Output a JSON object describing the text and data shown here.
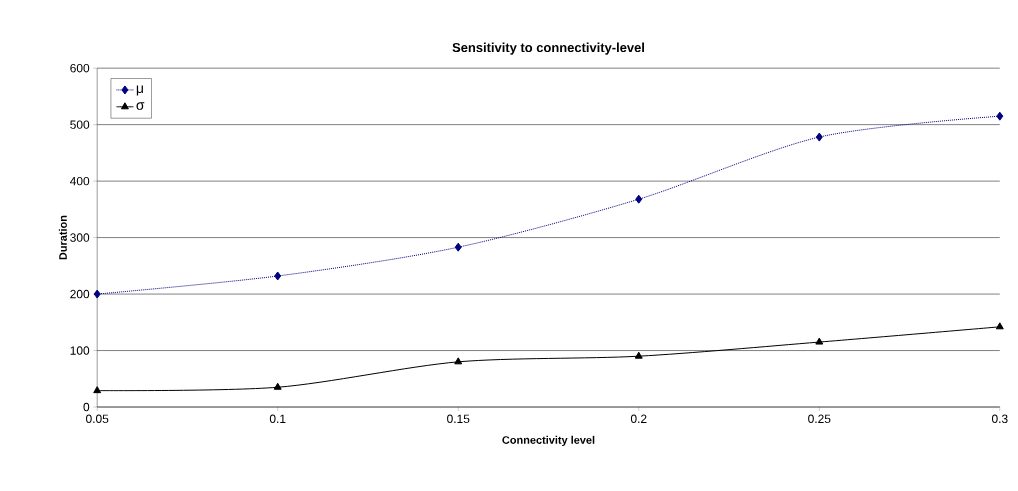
{
  "chart_data": {
    "type": "line",
    "title": "Sensitivity to connectivity-level",
    "xlabel": "Connectivity level",
    "ylabel": "Duration",
    "x": [
      0.05,
      0.1,
      0.15,
      0.2,
      0.25,
      0.3
    ],
    "series": [
      {
        "name": "μ",
        "color": "#000080",
        "values": [
          200,
          232,
          283,
          368,
          478,
          515
        ],
        "marker": "diamond",
        "line_style": "dotted"
      },
      {
        "name": "σ",
        "color": "#000000",
        "values": [
          29,
          35,
          80,
          90,
          115,
          142
        ],
        "marker": "triangle",
        "line_style": "solid"
      }
    ],
    "xlim": [
      0.05,
      0.3
    ],
    "xticks": [
      0.05,
      0.1,
      0.15,
      0.2,
      0.25,
      0.3
    ],
    "ylim": [
      0,
      600
    ],
    "yticks": [
      0,
      100,
      200,
      300,
      400,
      500,
      600
    ],
    "grid": "y",
    "legend": "top left"
  }
}
